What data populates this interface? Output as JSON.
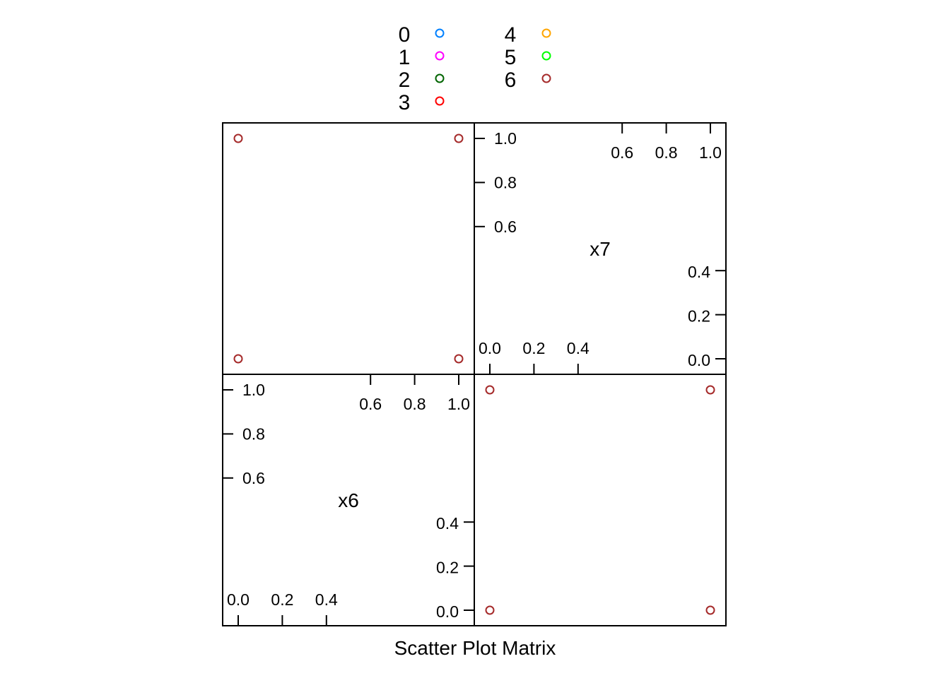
{
  "chart_data": {
    "type": "scatter",
    "subtype": "scatter-plot-matrix",
    "xlabel": "Scatter Plot Matrix",
    "variables": [
      "x7",
      "x6"
    ],
    "variable_ranges": {
      "x7": [
        0,
        1
      ],
      "x6": [
        0,
        1
      ]
    },
    "tick_labels": {
      "x7": {
        "upper": [
          "0.6",
          "0.8",
          "1.0"
        ],
        "lower": [
          "0.0",
          "0.2",
          "0.4"
        ]
      },
      "x6": {
        "upper": [
          "0.6",
          "0.8",
          "1.0"
        ],
        "lower": [
          "0.0",
          "0.2",
          "0.4"
        ]
      }
    },
    "grid": false,
    "legend": {
      "placement": "top",
      "entries": [
        {
          "label": "0",
          "color": "#0080FF"
        },
        {
          "label": "1",
          "color": "#FF00FF"
        },
        {
          "label": "2",
          "color": "#006400"
        },
        {
          "label": "3",
          "color": "#FF0000"
        },
        {
          "label": "4",
          "color": "#FFA500"
        },
        {
          "label": "5",
          "color": "#00FF00"
        },
        {
          "label": "6",
          "color": "#A52A2A"
        }
      ]
    },
    "series": [
      {
        "name": "6",
        "color": "#A52A2A",
        "points": [
          {
            "x6": 0,
            "x7": 0
          },
          {
            "x6": 0,
            "x7": 1
          },
          {
            "x6": 1,
            "x7": 0
          },
          {
            "x6": 1,
            "x7": 1
          }
        ]
      }
    ],
    "panels": [
      {
        "id": "x6-vs-x7",
        "x_var": "x6",
        "y_var": "x7"
      },
      {
        "id": "x7-vs-x6",
        "x_var": "x7",
        "y_var": "x6"
      }
    ]
  }
}
